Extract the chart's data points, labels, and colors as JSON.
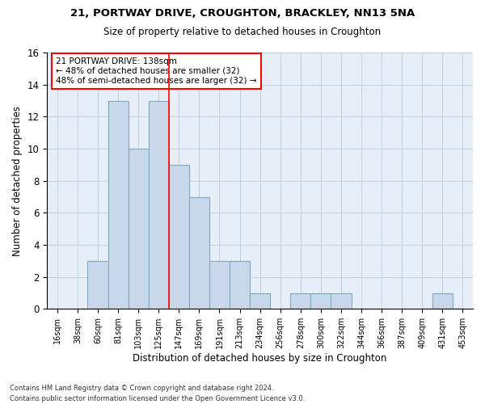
{
  "title1": "21, PORTWAY DRIVE, CROUGHTON, BRACKLEY, NN13 5NA",
  "title2": "Size of property relative to detached houses in Croughton",
  "xlabel": "Distribution of detached houses by size in Croughton",
  "ylabel": "Number of detached properties",
  "bar_labels": [
    "16sqm",
    "38sqm",
    "60sqm",
    "81sqm",
    "103sqm",
    "125sqm",
    "147sqm",
    "169sqm",
    "191sqm",
    "213sqm",
    "234sqm",
    "256sqm",
    "278sqm",
    "300sqm",
    "322sqm",
    "344sqm",
    "366sqm",
    "387sqm",
    "409sqm",
    "431sqm",
    "453sqm"
  ],
  "bar_heights": [
    0,
    0,
    3,
    13,
    10,
    13,
    9,
    7,
    3,
    3,
    1,
    0,
    1,
    1,
    1,
    0,
    0,
    0,
    0,
    1,
    0
  ],
  "bar_color": "#c8d8ea",
  "bar_edge_color": "#7aaabb",
  "vline_color": "red",
  "annotation_text": "21 PORTWAY DRIVE: 138sqm\n← 48% of detached houses are smaller (32)\n48% of semi-detached houses are larger (32) →",
  "annotation_box_color": "white",
  "annotation_box_edge_color": "red",
  "ylim": [
    0,
    16
  ],
  "yticks": [
    0,
    2,
    4,
    6,
    8,
    10,
    12,
    14,
    16
  ],
  "footer1": "Contains HM Land Registry data © Crown copyright and database right 2024.",
  "footer2": "Contains public sector information licensed under the Open Government Licence v3.0.",
  "grid_color": "#bbccdd",
  "background_color": "#e8eef8"
}
